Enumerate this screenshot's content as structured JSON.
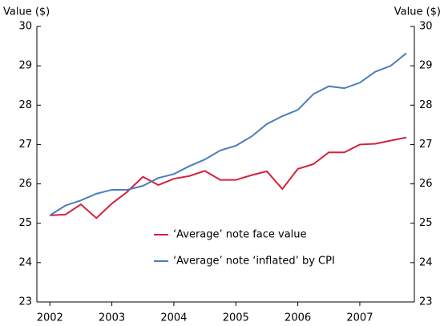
{
  "chart_data": {
    "type": "line",
    "ylabel": "Value ($)",
    "y2label": "Value ($)",
    "x": [
      2002,
      2002.25,
      2002.5,
      2002.75,
      2003,
      2003.25,
      2003.5,
      2003.75,
      2004,
      2004.25,
      2004.5,
      2004.75,
      2005,
      2005.25,
      2005.5,
      2005.75,
      2006,
      2006.25,
      2006.5,
      2006.75,
      2007,
      2007.25,
      2007.5,
      2007.75
    ],
    "series": [
      {
        "name": "‘Average’ note face value",
        "color": "#d4213d",
        "values": [
          25.2,
          25.22,
          25.48,
          25.13,
          25.5,
          25.8,
          26.18,
          25.97,
          26.13,
          26.2,
          26.33,
          26.1,
          26.1,
          26.22,
          26.32,
          25.87,
          26.38,
          26.5,
          26.8,
          26.8,
          27.0,
          27.02,
          27.1,
          27.18
        ]
      },
      {
        "name": "‘Average’ note ‘inflated’ by CPI",
        "color": "#4a7ebb",
        "values": [
          25.2,
          25.45,
          25.58,
          25.75,
          25.85,
          25.85,
          25.95,
          26.15,
          26.25,
          26.45,
          26.62,
          26.85,
          26.97,
          27.2,
          27.52,
          27.72,
          27.88,
          28.28,
          28.48,
          28.43,
          28.57,
          28.85,
          29.0,
          29.32
        ]
      }
    ],
    "xlim": [
      2001.79,
      2007.88
    ],
    "xticks": [
      2002,
      2003,
      2004,
      2005,
      2006,
      2007
    ],
    "ylim": [
      23,
      30
    ],
    "yticks": [
      23,
      24,
      25,
      26,
      27,
      28,
      29,
      30
    ],
    "y2lim": [
      23,
      30
    ],
    "y2ticks": [
      23,
      24,
      25,
      26,
      27,
      28,
      29,
      30
    ]
  }
}
